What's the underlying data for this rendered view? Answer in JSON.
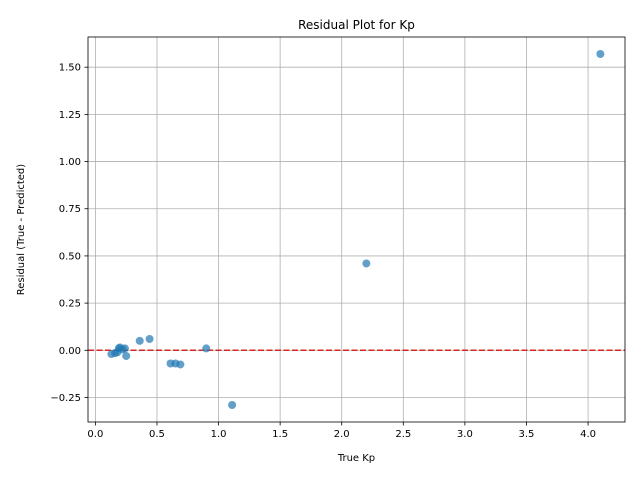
{
  "chart_data": {
    "type": "scatter",
    "title": "Residual Plot for Kp",
    "xlabel": "True Kp",
    "ylabel": "Residual (True - Predicted)",
    "xlim": [
      -0.06,
      4.3
    ],
    "ylim": [
      -0.38,
      1.66
    ],
    "xticks": [
      0.0,
      0.5,
      1.0,
      1.5,
      2.0,
      2.5,
      3.0,
      3.5,
      4.0
    ],
    "xtick_labels": [
      "0.0",
      "0.5",
      "1.0",
      "1.5",
      "2.0",
      "2.5",
      "3.0",
      "3.5",
      "4.0"
    ],
    "yticks": [
      -0.25,
      0.0,
      0.25,
      0.5,
      0.75,
      1.0,
      1.25,
      1.5
    ],
    "ytick_labels": [
      "−0.25",
      "0.00",
      "0.25",
      "0.50",
      "0.75",
      "1.00",
      "1.25",
      "1.50"
    ],
    "grid": true,
    "reference_line": {
      "y": 0.0,
      "style": "dashed",
      "color": "#d62728"
    },
    "point_color": "#1f77b4",
    "points": [
      {
        "x": 0.13,
        "y": -0.02
      },
      {
        "x": 0.16,
        "y": -0.015
      },
      {
        "x": 0.18,
        "y": -0.01
      },
      {
        "x": 0.19,
        "y": 0.01
      },
      {
        "x": 0.2,
        "y": 0.015
      },
      {
        "x": 0.22,
        "y": 0.005
      },
      {
        "x": 0.24,
        "y": 0.01
      },
      {
        "x": 0.25,
        "y": -0.03
      },
      {
        "x": 0.36,
        "y": 0.05
      },
      {
        "x": 0.44,
        "y": 0.06
      },
      {
        "x": 0.61,
        "y": -0.07
      },
      {
        "x": 0.65,
        "y": -0.07
      },
      {
        "x": 0.69,
        "y": -0.075
      },
      {
        "x": 0.9,
        "y": 0.01
      },
      {
        "x": 1.11,
        "y": -0.29
      },
      {
        "x": 2.2,
        "y": 0.46
      },
      {
        "x": 4.1,
        "y": 1.57
      }
    ]
  }
}
